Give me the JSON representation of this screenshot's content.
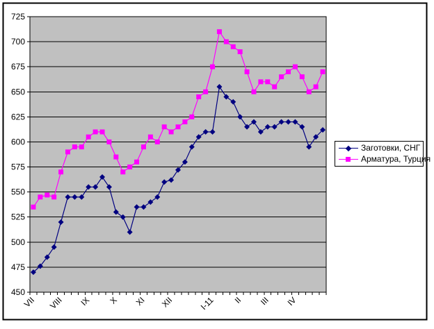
{
  "chart_data": {
    "type": "line",
    "title": "",
    "xlabel": "",
    "ylabel": "",
    "n_points": 43,
    "ylim": [
      450,
      725
    ],
    "ytick_step": 25,
    "yticks": [
      450,
      475,
      500,
      525,
      550,
      575,
      600,
      625,
      650,
      675,
      700,
      725
    ],
    "grid": true,
    "plot_bg": "#c0c0c0",
    "grid_color": "#000000",
    "axis_color": "#000000",
    "legend_position": "right-middle",
    "x_labels": [
      {
        "label": "VII",
        "index": 0
      },
      {
        "label": "VIII",
        "index": 4
      },
      {
        "label": "IX",
        "index": 8
      },
      {
        "label": "X",
        "index": 12
      },
      {
        "label": "XI",
        "index": 16
      },
      {
        "label": "XII",
        "index": 20
      },
      {
        "label": "I-11",
        "index": 26
      },
      {
        "label": "II",
        "index": 30
      },
      {
        "label": "III",
        "index": 34
      },
      {
        "label": "IV",
        "index": 38
      }
    ],
    "series": [
      {
        "name": "Заготовки, СНГ",
        "color": "#000080",
        "marker": "diamond",
        "values": [
          470,
          476,
          485,
          495,
          520,
          545,
          545,
          545,
          555,
          555,
          565,
          555,
          530,
          525,
          510,
          535,
          535,
          540,
          545,
          560,
          562,
          572,
          580,
          595,
          605,
          610,
          610,
          655,
          645,
          640,
          625,
          615,
          620,
          610,
          615,
          615,
          620,
          620,
          620,
          615,
          595,
          605,
          612
        ]
      },
      {
        "name": "Арматура, Турция",
        "color": "#ff00ff",
        "marker": "square",
        "values": [
          535,
          545,
          547,
          545,
          570,
          590,
          595,
          595,
          605,
          610,
          610,
          600,
          585,
          570,
          575,
          580,
          595,
          605,
          600,
          615,
          610,
          615,
          620,
          625,
          645,
          650,
          675,
          710,
          700,
          695,
          690,
          670,
          650,
          660,
          660,
          655,
          665,
          670,
          675,
          665,
          650,
          655,
          670
        ]
      }
    ]
  }
}
